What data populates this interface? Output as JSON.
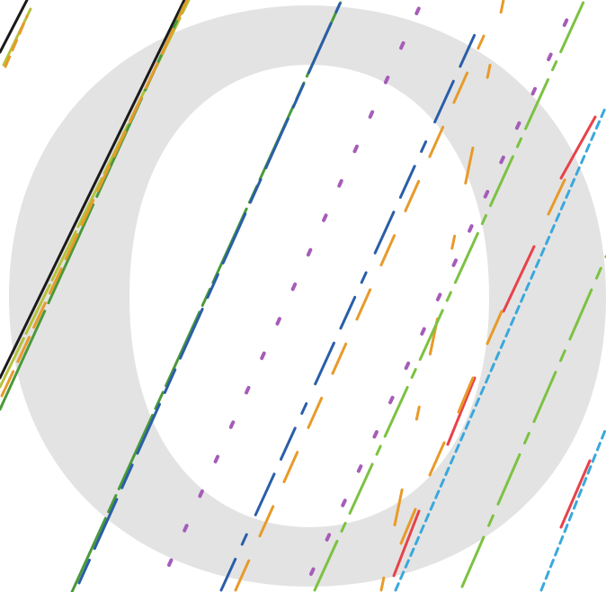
{
  "colors": {
    "background": "#ffffff",
    "watermark": "#e3e3e3",
    "black": "#1a1a1a",
    "olive": "#b5c23a",
    "dark_green": "#4a9a3a",
    "blue": "#2a5ea8",
    "orange": "#e89a2a",
    "purple": "#a65cb8",
    "light_green": "#7cc242",
    "red": "#e8424a",
    "cyan": "#3aa8dc"
  },
  "watermark_glyph": "O"
}
